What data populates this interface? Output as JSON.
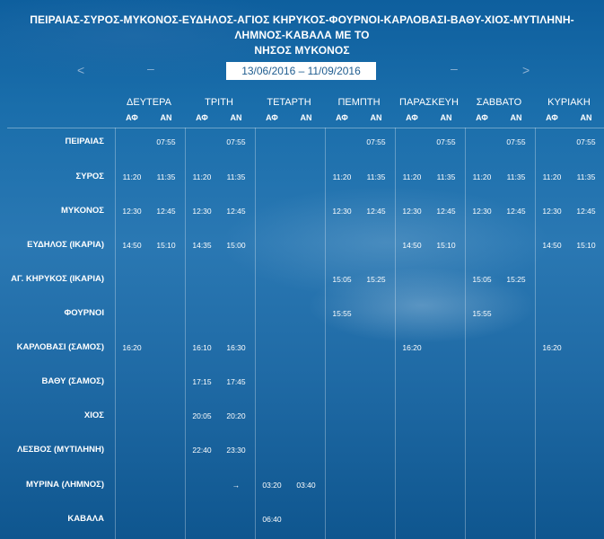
{
  "title_line1": "ΠΕΙΡΑΙΑΣ-ΣΥΡΟΣ-ΜΥΚΟΝΟΣ-ΕΥΔΗΛΟΣ-ΑΓΙΟΣ ΚΗΡΥΚΟΣ-ΦΟΥΡΝΟΙ-ΚΑΡΛΟΒΑΣΙ-ΒΑΘΥ-ΧΙΟΣ-ΜΥΤΙΛΗΝΗ-ΛΗΜΝΟΣ-ΚΑΒΑΛΑ ΜΕ ΤΟ",
  "title_line2": "ΝΗΣΟΣ ΜΥΚΟΝΟΣ",
  "nav": {
    "prev": "<",
    "next": ">",
    "dash": "–",
    "date_range": "13/06/2016 – 11/09/2016"
  },
  "days": [
    "ΔΕΥΤΕΡΑ",
    "ΤΡΙΤΗ",
    "ΤΕΤΑΡΤΗ",
    "ΠΕΜΠΤΗ",
    "ΠΑΡΑΣΚΕΥΗ",
    "ΣΑΒΒΑΤΟ",
    "ΚΥΡΙΑΚΗ"
  ],
  "arr_label": "ΑΦ",
  "dep_label": "ΑΝ",
  "rows": [
    {
      "port": "ΠΕΙΡΑΙΑΣ",
      "times": [
        "",
        "07:55",
        "",
        "07:55",
        "",
        "",
        "",
        "07:55",
        "",
        "07:55",
        "",
        "07:55",
        "",
        "07:55"
      ]
    },
    {
      "port": "ΣΥΡΟΣ",
      "times": [
        "11:20",
        "11:35",
        "11:20",
        "11:35",
        "",
        "",
        "11:20",
        "11:35",
        "11:20",
        "11:35",
        "11:20",
        "11:35",
        "11:20",
        "11:35"
      ]
    },
    {
      "port": "ΜΥΚΟΝΟΣ",
      "times": [
        "12:30",
        "12:45",
        "12:30",
        "12:45",
        "",
        "",
        "12:30",
        "12:45",
        "12:30",
        "12:45",
        "12:30",
        "12:45",
        "12:30",
        "12:45"
      ]
    },
    {
      "port": "ΕΥΔΗΛΟΣ (ΙΚΑΡΙΑ)",
      "times": [
        "14:50",
        "15:10",
        "14:35",
        "15:00",
        "",
        "",
        "",
        "",
        "14:50",
        "15:10",
        "",
        "",
        "14:50",
        "15:10"
      ]
    },
    {
      "port": "ΑΓ. ΚΗΡΥΚΟΣ (ΙΚΑΡΙΑ)",
      "times": [
        "",
        "",
        "",
        "",
        "",
        "",
        "15:05",
        "15:25",
        "",
        "",
        "15:05",
        "15:25",
        "",
        ""
      ]
    },
    {
      "port": "ΦΟΥΡΝΟΙ",
      "times": [
        "",
        "",
        "",
        "",
        "",
        "",
        "15:55",
        "",
        "",
        "",
        "15:55",
        "",
        "",
        ""
      ]
    },
    {
      "port": "ΚΑΡΛΟΒΑΣΙ (ΣΑΜΟΣ)",
      "times": [
        "16:20",
        "",
        "16:10",
        "16:30",
        "",
        "",
        "",
        "",
        "16:20",
        "",
        "",
        "",
        "16:20",
        ""
      ]
    },
    {
      "port": "ΒΑΘΥ (ΣΑΜΟΣ)",
      "times": [
        "",
        "",
        "17:15",
        "17:45",
        "",
        "",
        "",
        "",
        "",
        "",
        "",
        "",
        "",
        ""
      ]
    },
    {
      "port": "ΧΙΟΣ",
      "times": [
        "",
        "",
        "20:05",
        "20:20",
        "",
        "",
        "",
        "",
        "",
        "",
        "",
        "",
        "",
        ""
      ]
    },
    {
      "port": "ΛΕΣΒΟΣ (ΜΥΤΙΛΗΝΗ)",
      "times": [
        "",
        "",
        "22:40",
        "23:30",
        "",
        "",
        "",
        "",
        "",
        "",
        "",
        "",
        "",
        ""
      ]
    },
    {
      "port": "ΜΥΡΙΝΑ (ΛΗΜΝΟΣ)",
      "times": [
        "",
        "",
        "",
        "→",
        "03:20",
        "03:40",
        "",
        "",
        "",
        "",
        "",
        "",
        "",
        ""
      ]
    },
    {
      "port": "ΚΑΒΑΛΑ",
      "times": [
        "",
        "",
        "",
        "",
        "06:40",
        "",
        "",
        "",
        "",
        "",
        "",
        "",
        "",
        ""
      ]
    }
  ]
}
